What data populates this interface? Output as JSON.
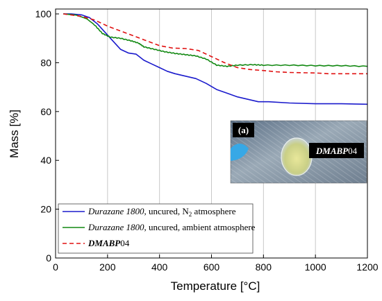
{
  "chart_data": {
    "type": "line",
    "xlabel": "Temperature [°C]",
    "ylabel": "Mass [%]",
    "xlim": [
      0,
      1200
    ],
    "ylim": [
      0,
      102
    ],
    "x_ticks": [
      0,
      200,
      400,
      600,
      800,
      1000,
      1200
    ],
    "y_ticks": [
      0,
      20,
      40,
      60,
      80,
      100
    ],
    "grid": "vertical",
    "legend_position": "bottom-left",
    "series": [
      {
        "name_parts": {
          "italic": "Durazane 1800",
          "plain": ", uncured, N",
          "sub": "2",
          "tail": " atmosphere"
        },
        "color": "#1a1acc",
        "style": "solid",
        "x": [
          30,
          60,
          100,
          130,
          160,
          190,
          220,
          250,
          280,
          310,
          340,
          370,
          400,
          430,
          460,
          500,
          540,
          580,
          620,
          660,
          700,
          740,
          780,
          820,
          900,
          1000,
          1100,
          1200
        ],
        "y": [
          100,
          100,
          99.6,
          98.5,
          96,
          92.5,
          89,
          85.5,
          84,
          83.5,
          81,
          79.5,
          78,
          76.5,
          75.5,
          74.5,
          73.5,
          71.5,
          69,
          67.5,
          66,
          65,
          64,
          64,
          63.5,
          63.2,
          63.2,
          63
        ]
      },
      {
        "name_parts": {
          "italic": "Durazane 1800",
          "plain": ", uncured, ambient atmosphere"
        },
        "color": "#118811",
        "style": "solid",
        "x": [
          30,
          80,
          120,
          150,
          180,
          210,
          250,
          290,
          320,
          340,
          380,
          420,
          460,
          500,
          540,
          580,
          620,
          660,
          700,
          760,
          800,
          900,
          1000,
          1100,
          1200
        ],
        "y": [
          100,
          99.5,
          98,
          95.5,
          92,
          90.5,
          90,
          89,
          88,
          86.5,
          85.5,
          84.5,
          83.8,
          83.3,
          82.8,
          81.5,
          79,
          78.5,
          79,
          79.2,
          79,
          79,
          78.8,
          78.8,
          78.5
        ],
        "noise": true
      },
      {
        "name_parts": {
          "bolditalic": "DMABP",
          "plain": "04"
        },
        "color": "#e01010",
        "style": "dashed",
        "x": [
          30,
          100,
          150,
          200,
          250,
          300,
          350,
          400,
          450,
          500,
          550,
          600,
          650,
          700,
          750,
          800,
          850,
          900,
          1000,
          1050,
          1100,
          1200
        ],
        "y": [
          100,
          99,
          97.5,
          95,
          93,
          91,
          89,
          87,
          86,
          85.8,
          85,
          82.5,
          80,
          78,
          77.2,
          76.8,
          76.3,
          76,
          75.8,
          75.5,
          75.5,
          75.5
        ]
      }
    ]
  },
  "inset": {
    "label": "(a)",
    "tag_bold": "DMABP",
    "tag_plain": "04"
  }
}
